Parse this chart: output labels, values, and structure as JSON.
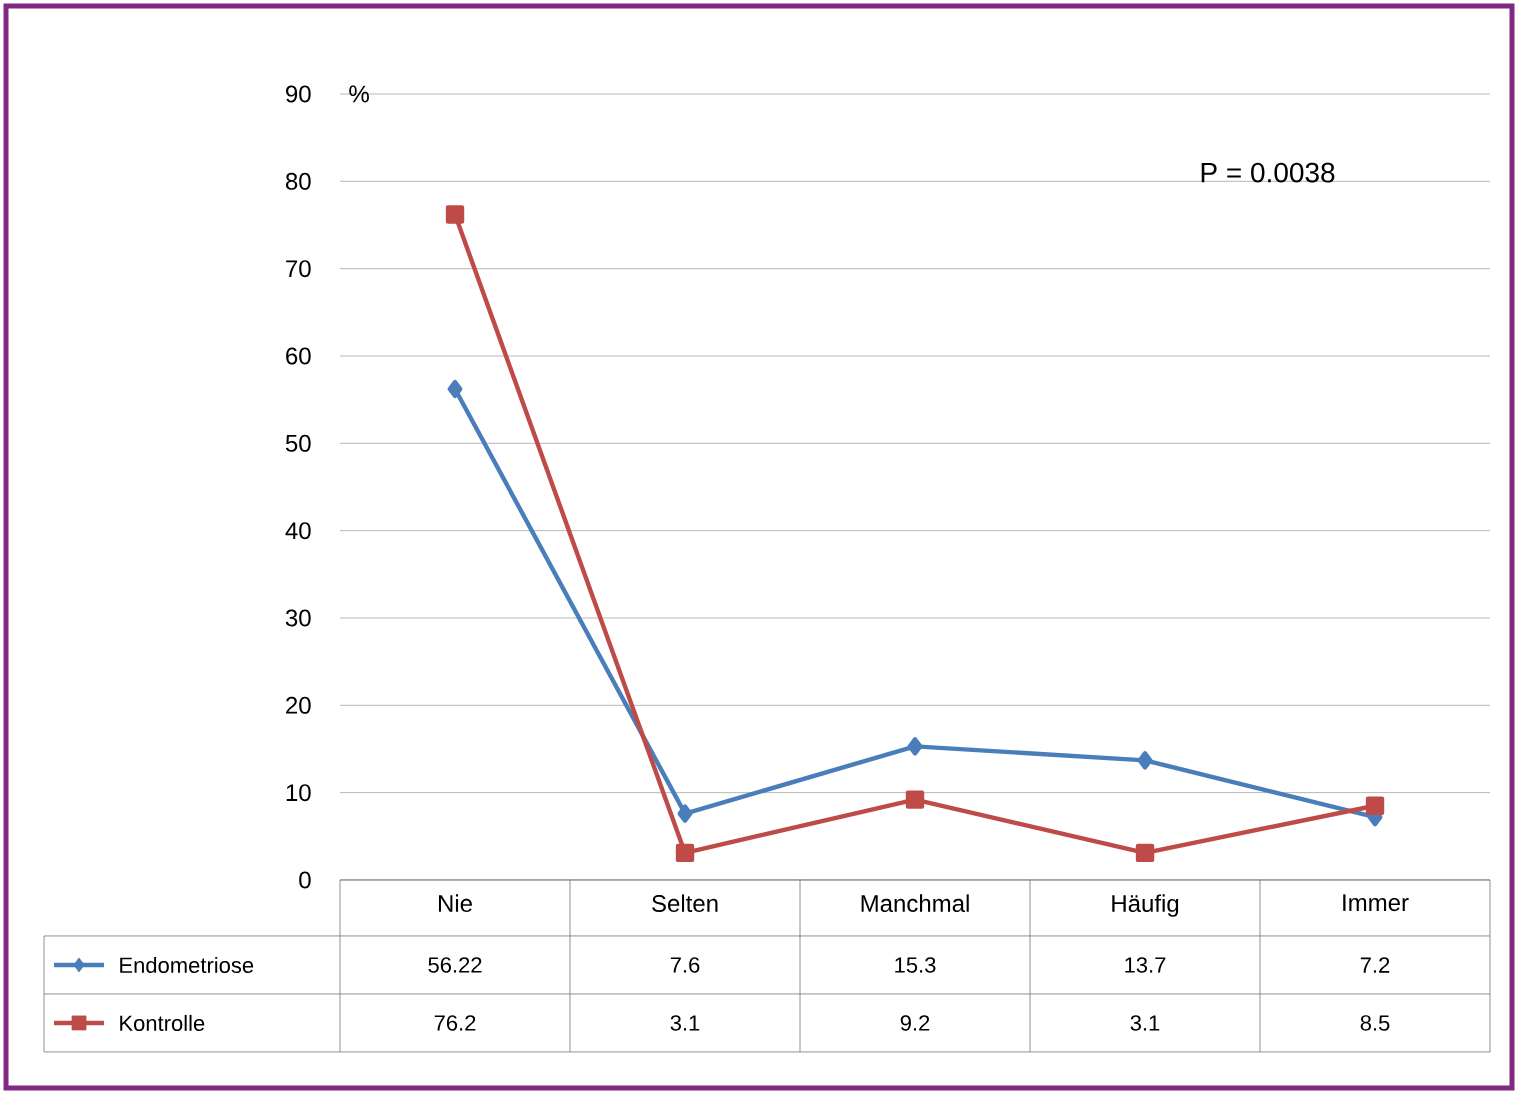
{
  "chart_data": {
    "type": "line",
    "ylabel": "%",
    "categories": [
      "Nie",
      "Selten",
      "Manchmal",
      "Häufig",
      "Immer"
    ],
    "series": [
      {
        "name": "Endometriose",
        "color": "#4a7ebb",
        "marker": "diamond",
        "values": [
          56.22,
          7.6,
          15.3,
          13.7,
          7.2
        ]
      },
      {
        "name": "Kontrolle",
        "color": "#be4b48",
        "marker": "square",
        "values": [
          76.2,
          3.1,
          9.2,
          3.1,
          8.5
        ]
      }
    ],
    "legend": "bottom left",
    "ylim": [
      0,
      90
    ],
    "yticks": [
      0,
      10,
      20,
      30,
      40,
      50,
      60,
      70,
      80,
      90
    ],
    "grid": "y",
    "data_labels": true,
    "annotations": [
      "P = 0.0038"
    ]
  }
}
